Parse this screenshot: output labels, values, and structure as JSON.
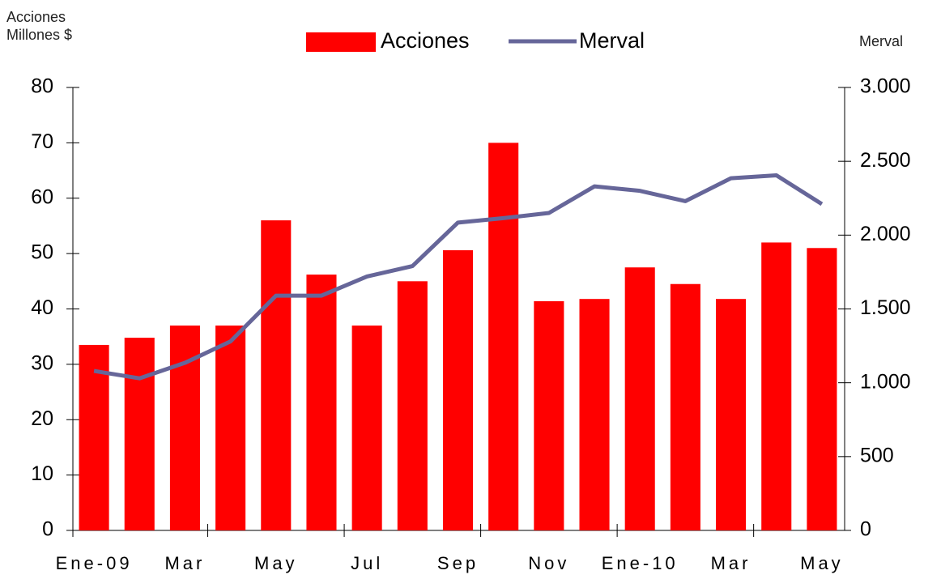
{
  "chart_data": {
    "type": "bar+line",
    "ylabel": [
      "Acciones",
      "Millones $"
    ],
    "y2label": "Merval",
    "categories": [
      "Ene-09",
      null,
      "Mar",
      null,
      "May",
      null,
      "Jul",
      null,
      "Sep",
      null,
      "Nov",
      null,
      "Ene-10",
      null,
      "Mar",
      null,
      "May"
    ],
    "series": [
      {
        "name": "Acciones",
        "type": "bar",
        "color": "#ff0000",
        "values": [
          33.5,
          34.8,
          37,
          37,
          56,
          46.2,
          37,
          45,
          50.6,
          70,
          41.4,
          41.8,
          47.5,
          44.5,
          41.8,
          52,
          51
        ]
      },
      {
        "name": "Merval",
        "type": "line",
        "axis": "y2",
        "color": "#666699",
        "values": [
          1080,
          1030,
          1135,
          1280,
          1590,
          1590,
          1720,
          1790,
          2085,
          2115,
          2150,
          2330,
          2300,
          2230,
          2385,
          2405,
          2210
        ]
      }
    ],
    "ylim": [
      0,
      80
    ],
    "yticks": [
      0,
      10,
      20,
      30,
      40,
      50,
      60,
      70,
      80
    ],
    "y2lim": [
      0,
      3000
    ],
    "y2ticks": [
      0,
      500,
      {
        "value": 1000,
        "label": "1.000"
      },
      {
        "value": 1500,
        "label": "1.500"
      },
      {
        "value": 2000,
        "label": "2.000"
      },
      {
        "value": 2500,
        "label": "2.500"
      },
      {
        "value": 3000,
        "label": "3.000"
      }
    ],
    "legend": "top"
  }
}
